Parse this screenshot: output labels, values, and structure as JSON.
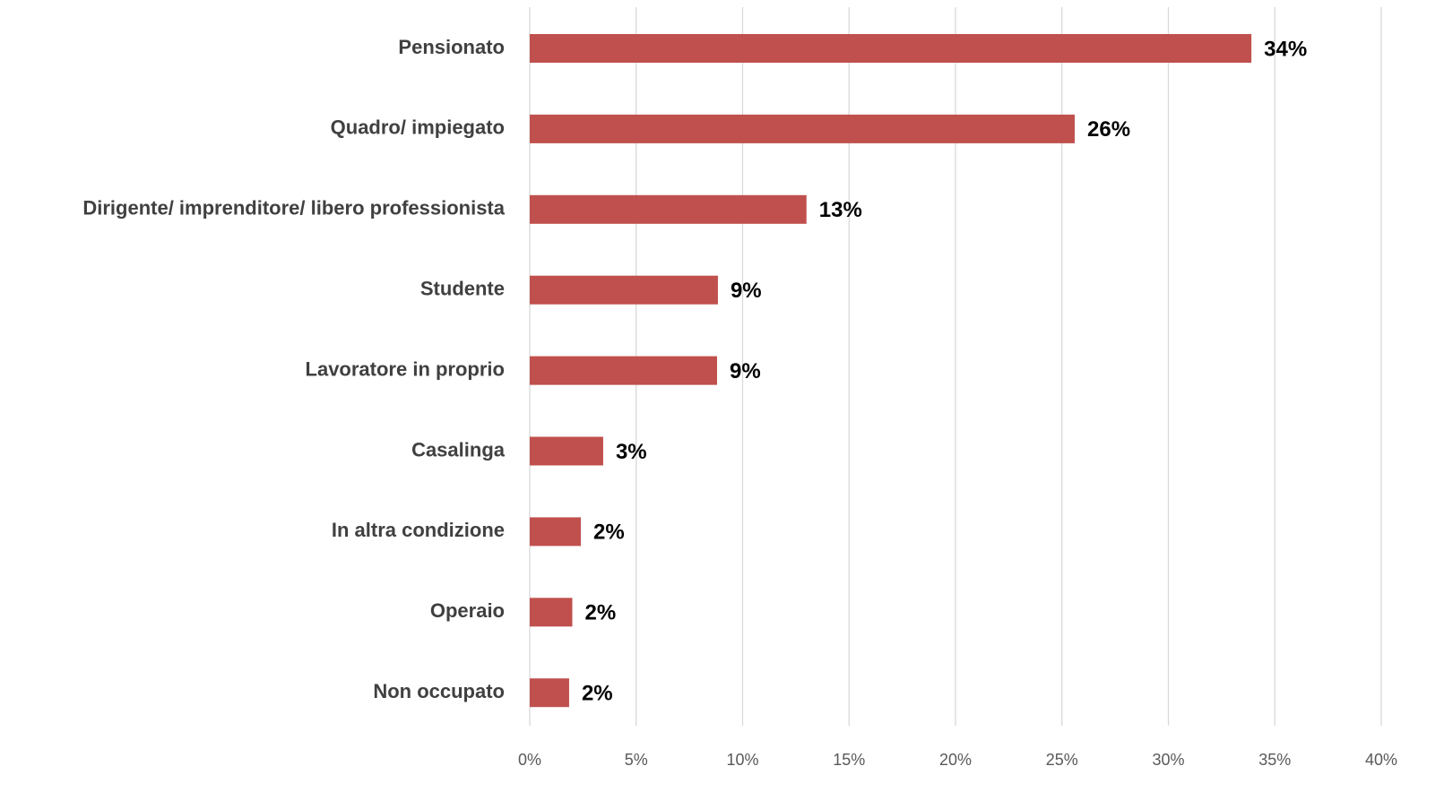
{
  "chart_data": {
    "type": "bar",
    "orientation": "horizontal",
    "categories": [
      "Pensionato",
      "Quadro/ impiegato",
      "Dirigente/ imprenditore/ libero professionista",
      "Studente",
      "Lavoratore in proprio",
      "Casalinga",
      "In altra condizione",
      "Operaio",
      "Non occupato"
    ],
    "values": [
      33.9,
      25.6,
      13.0,
      8.84,
      8.8,
      3.45,
      2.4,
      2.0,
      1.85
    ],
    "value_labels": [
      "34%",
      "26%",
      "13%",
      "9%",
      "9%",
      "3%",
      "2%",
      "2%",
      "2%"
    ],
    "color": "#c0504d",
    "xlim": [
      0,
      40
    ],
    "xticks": [
      {
        "value": 0,
        "label": "0%"
      },
      {
        "value": 5,
        "label": "5%"
      },
      {
        "value": 10,
        "label": "10%"
      },
      {
        "value": 15,
        "label": "15%"
      },
      {
        "value": 20,
        "label": "20%"
      },
      {
        "value": 25,
        "label": "25%"
      },
      {
        "value": 30,
        "label": "30%"
      },
      {
        "value": 35,
        "label": "35%"
      },
      {
        "value": 40,
        "label": "40%"
      }
    ],
    "grid": true
  }
}
